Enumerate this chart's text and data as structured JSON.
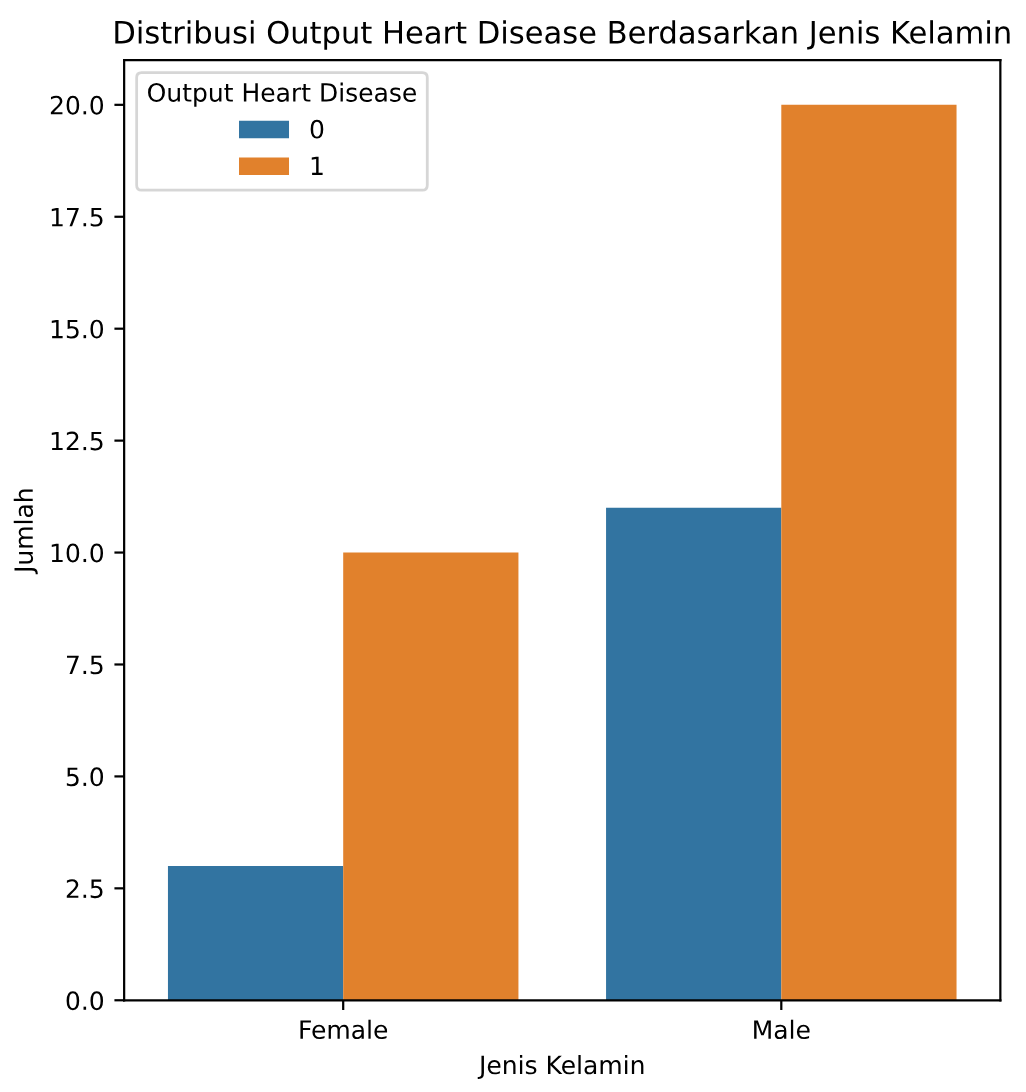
{
  "chart_data": {
    "type": "bar",
    "title": "Distribusi Output Heart Disease Berdasarkan Jenis Kelamin",
    "xlabel": "Jenis Kelamin",
    "ylabel": "Jumlah",
    "legend_title": "Output Heart Disease",
    "categories": [
      "Female",
      "Male"
    ],
    "series": [
      {
        "name": "0",
        "color": "#3274a1",
        "values": [
          3,
          11
        ]
      },
      {
        "name": "1",
        "color": "#e1812c",
        "values": [
          10,
          20
        ]
      }
    ],
    "ylim": [
      0,
      21
    ],
    "yticks": [
      {
        "value": 0,
        "label": "0.0"
      },
      {
        "value": 2.5,
        "label": "2.5"
      },
      {
        "value": 5,
        "label": "5.0"
      },
      {
        "value": 7.5,
        "label": "7.5"
      },
      {
        "value": 10,
        "label": "10.0"
      },
      {
        "value": 12.5,
        "label": "12.5"
      },
      {
        "value": 15,
        "label": "15.0"
      },
      {
        "value": 17.5,
        "label": "17.5"
      },
      {
        "value": 20,
        "label": "20.0"
      }
    ],
    "legend": "top left",
    "grid": false
  }
}
